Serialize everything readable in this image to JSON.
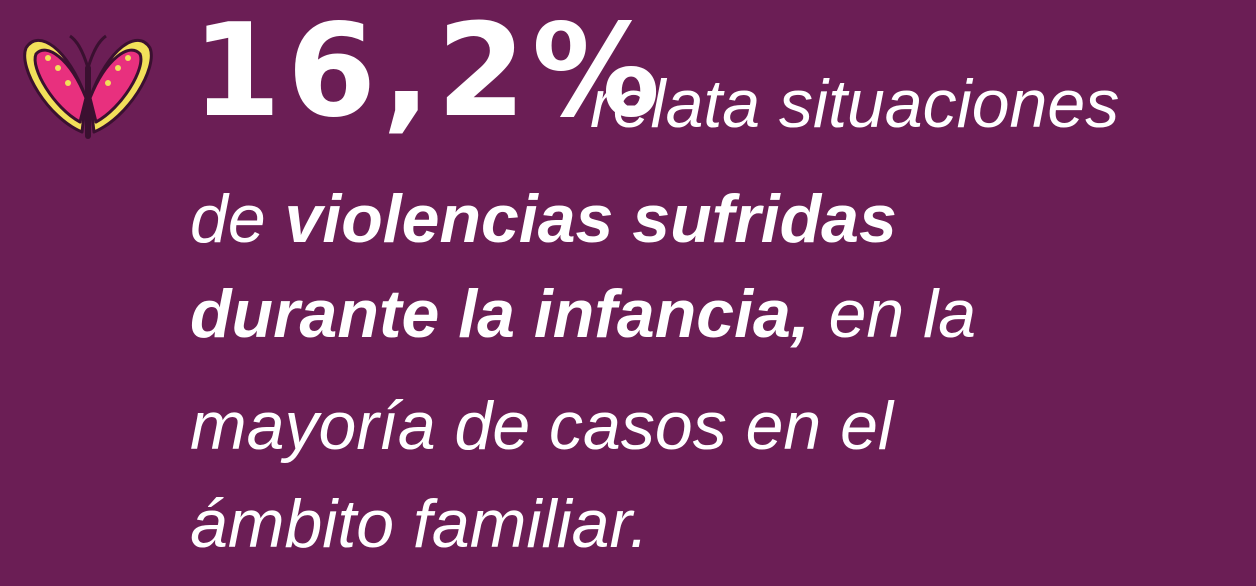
{
  "stat": "16,2%",
  "lines": [
    [
      {
        "text": "relata situaciones",
        "bold": false
      }
    ],
    [
      {
        "text": "de ",
        "bold": false
      },
      {
        "text": "violencias sufridas",
        "bold": true
      }
    ],
    [
      {
        "text": "durante la infancia,",
        "bold": true
      },
      {
        "text": " en la",
        "bold": false
      }
    ],
    [
      {
        "text": "mayoría de casos en el",
        "bold": false
      }
    ],
    [
      {
        "text": "ámbito familiar.",
        "bold": false
      }
    ]
  ]
}
